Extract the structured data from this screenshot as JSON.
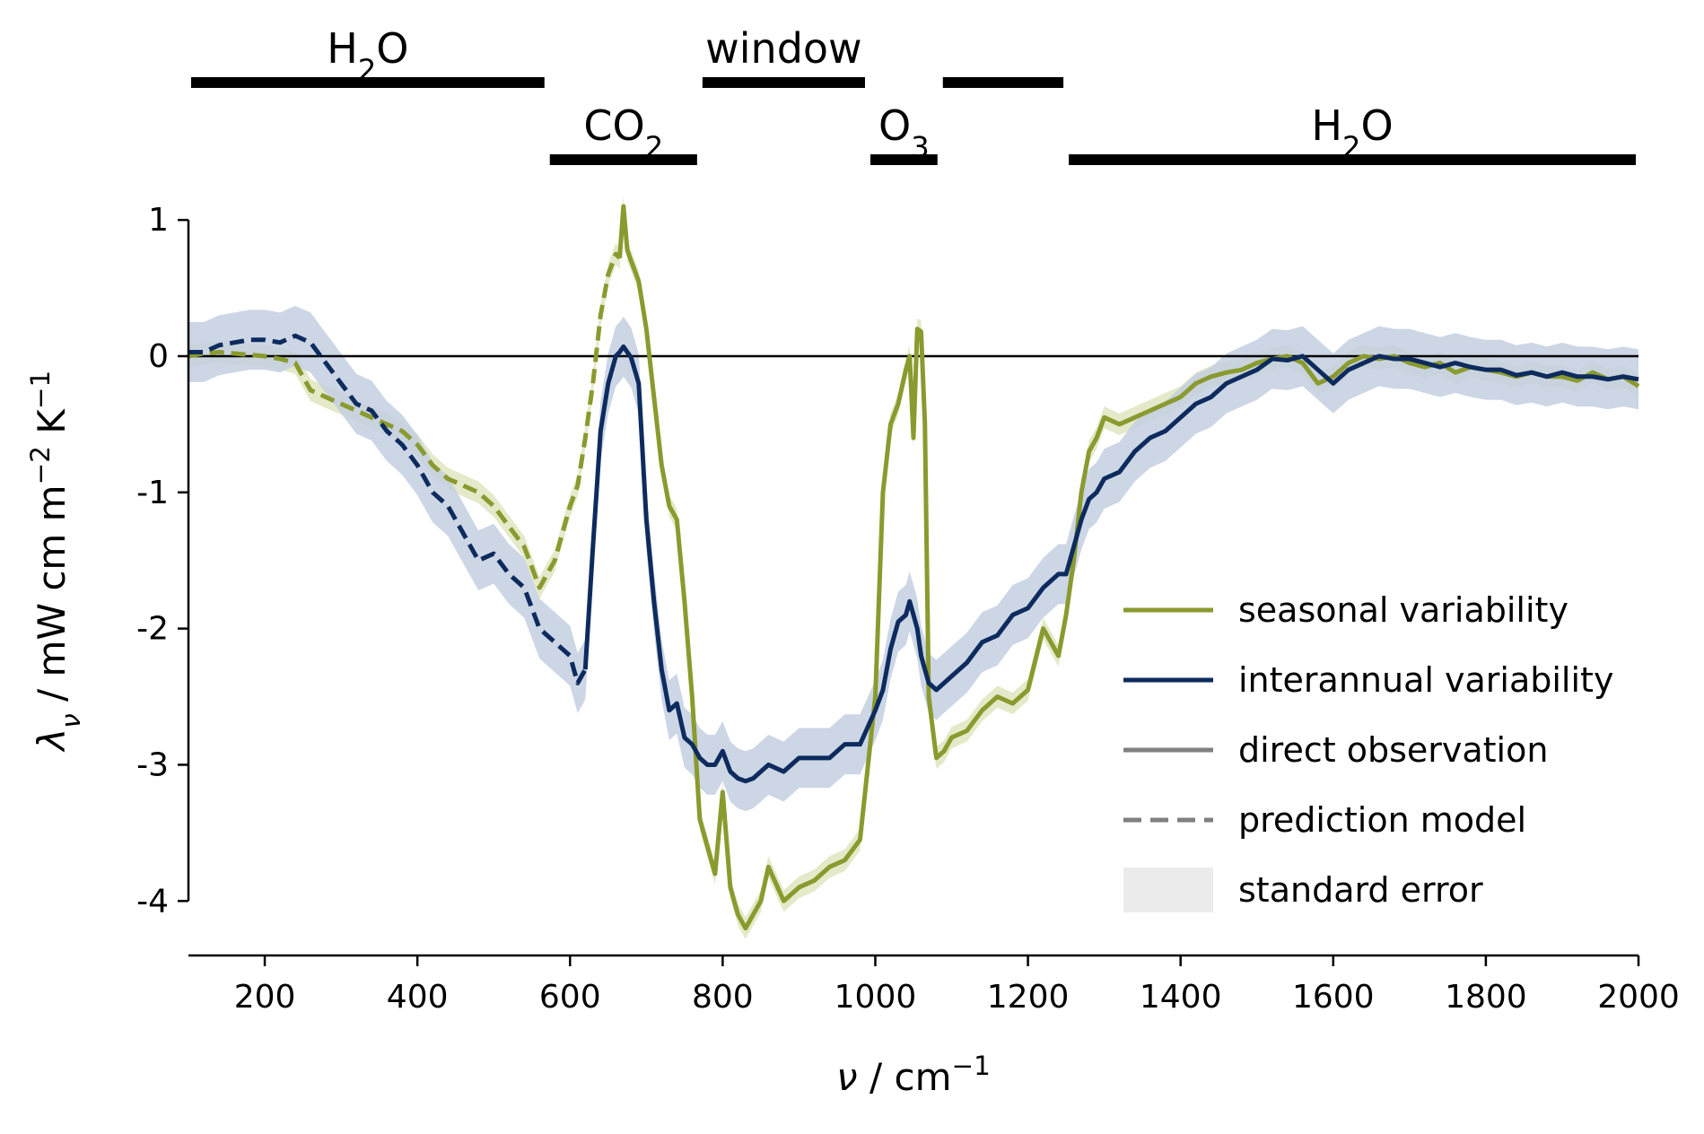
{
  "colors": {
    "seasonal": "#8a9a2e",
    "interannual": "#0d2b5e",
    "seasonal_band": "#dfe6bf",
    "interannual_band": "#c3cfe0",
    "gray_legend": "#808080",
    "std_error_legend": "#ebebeb"
  },
  "chart_data": {
    "type": "line",
    "xlabel": "ν / cm⁻¹",
    "ylabel": "λν / mW cm m⁻² K⁻¹",
    "xlim": [
      100,
      2000
    ],
    "ylim": [
      -4.4,
      1.1
    ],
    "x_ticks": [
      200,
      400,
      600,
      800,
      1000,
      1200,
      1400,
      1600,
      1800,
      2000
    ],
    "x_tick_labels": [
      "200",
      "400",
      "600",
      "800",
      "1000",
      "1200",
      "1400",
      "1600",
      "1800",
      "2000"
    ],
    "y_ticks": [
      1,
      0,
      -1,
      -2,
      -3,
      -4
    ],
    "y_tick_labels": [
      "1",
      "0",
      "-1",
      "-2",
      "-3",
      "-4"
    ],
    "zero_line": 0,
    "grid": false,
    "legend_position": "lower-right",
    "legend": [
      {
        "label": "seasonal variability",
        "style": "line",
        "color_key": "seasonal"
      },
      {
        "label": "interannual variability",
        "style": "line",
        "color_key": "interannual"
      },
      {
        "label": "direct observation",
        "style": "solid-gray"
      },
      {
        "label": "prediction model",
        "style": "dashed-gray"
      },
      {
        "label": "standard error",
        "style": "patch"
      }
    ],
    "bands": [
      {
        "label": "H₂O",
        "x0": 100,
        "x1": 570,
        "row": 1
      },
      {
        "label": "window",
        "x0": 770,
        "x1": 990,
        "row": 1
      },
      {
        "label": "",
        "x0": 1085,
        "x1": 1250,
        "row": 1
      },
      {
        "label": "CO₂",
        "x0": 570,
        "x1": 770,
        "row": 2
      },
      {
        "label": "O₃",
        "x0": 990,
        "x1": 1085,
        "row": 2
      },
      {
        "label": "H₂O",
        "x0": 1250,
        "x1": 2000,
        "row": 2
      }
    ],
    "window_label": "window",
    "series": [
      {
        "name": "seasonal variability",
        "color_key": "seasonal",
        "band_key": "seasonal_band",
        "stderr": 0.08,
        "x": [
          100,
          120,
          140,
          160,
          180,
          200,
          220,
          240,
          260,
          280,
          300,
          320,
          340,
          360,
          380,
          400,
          420,
          440,
          460,
          480,
          500,
          520,
          540,
          560,
          580,
          600,
          610,
          620,
          630,
          640,
          650,
          660,
          665,
          670,
          675,
          680,
          690,
          700,
          710,
          720,
          730,
          740,
          750,
          760,
          770,
          780,
          790,
          800,
          810,
          820,
          830,
          840,
          850,
          860,
          880,
          900,
          920,
          940,
          960,
          980,
          1000,
          1010,
          1020,
          1030,
          1040,
          1045,
          1050,
          1055,
          1060,
          1065,
          1070,
          1080,
          1090,
          1100,
          1120,
          1140,
          1160,
          1180,
          1200,
          1220,
          1240,
          1250,
          1260,
          1270,
          1280,
          1290,
          1300,
          1320,
          1340,
          1360,
          1380,
          1400,
          1420,
          1440,
          1460,
          1480,
          1500,
          1520,
          1540,
          1560,
          1580,
          1600,
          1620,
          1640,
          1660,
          1680,
          1700,
          1720,
          1740,
          1760,
          1780,
          1800,
          1820,
          1840,
          1860,
          1880,
          1900,
          1920,
          1940,
          1960,
          1980,
          2000
        ],
        "y": [
          0.0,
          0.02,
          0.03,
          0.02,
          0.01,
          0.0,
          -0.02,
          -0.05,
          -0.25,
          -0.3,
          -0.35,
          -0.4,
          -0.45,
          -0.5,
          -0.55,
          -0.65,
          -0.8,
          -0.9,
          -0.95,
          -1.0,
          -1.1,
          -1.25,
          -1.4,
          -1.7,
          -1.5,
          -1.1,
          -0.95,
          -0.6,
          -0.2,
          0.3,
          0.6,
          0.75,
          0.72,
          1.1,
          0.78,
          0.7,
          0.55,
          0.2,
          -0.3,
          -0.8,
          -1.1,
          -1.2,
          -1.8,
          -2.5,
          -3.4,
          -3.6,
          -3.8,
          -3.2,
          -3.9,
          -4.1,
          -4.2,
          -4.1,
          -4.0,
          -3.75,
          -4.0,
          -3.9,
          -3.85,
          -3.75,
          -3.7,
          -3.55,
          -2.5,
          -1.0,
          -0.5,
          -0.35,
          -0.1,
          0.0,
          -0.6,
          0.2,
          0.18,
          -0.5,
          -2.5,
          -2.95,
          -2.9,
          -2.8,
          -2.75,
          -2.6,
          -2.5,
          -2.55,
          -2.45,
          -2.0,
          -2.2,
          -1.9,
          -1.5,
          -1.0,
          -0.7,
          -0.6,
          -0.45,
          -0.5,
          -0.45,
          -0.4,
          -0.35,
          -0.3,
          -0.2,
          -0.15,
          -0.12,
          -0.1,
          -0.05,
          -0.02,
          0.0,
          -0.05,
          -0.2,
          -0.15,
          -0.05,
          0.0,
          -0.02,
          0.0,
          -0.05,
          -0.08,
          -0.05,
          -0.12,
          -0.08,
          -0.1,
          -0.12,
          -0.15,
          -0.12,
          -0.15,
          -0.15,
          -0.18,
          -0.12,
          -0.17,
          -0.15,
          -0.22
        ],
        "prediction_x_range": [
          100,
          665
        ]
      },
      {
        "name": "interannual variability",
        "color_key": "interannual",
        "band_key": "interannual_band",
        "stderr": 0.22,
        "x": [
          100,
          120,
          140,
          160,
          180,
          200,
          220,
          240,
          260,
          280,
          300,
          320,
          340,
          360,
          380,
          400,
          420,
          440,
          460,
          480,
          500,
          520,
          540,
          560,
          580,
          600,
          610,
          620,
          630,
          640,
          650,
          660,
          665,
          670,
          675,
          680,
          690,
          700,
          710,
          720,
          730,
          740,
          750,
          760,
          770,
          780,
          790,
          800,
          810,
          820,
          830,
          840,
          850,
          860,
          880,
          900,
          920,
          940,
          960,
          980,
          1000,
          1010,
          1020,
          1030,
          1040,
          1045,
          1050,
          1055,
          1060,
          1065,
          1070,
          1080,
          1090,
          1100,
          1120,
          1140,
          1160,
          1180,
          1200,
          1220,
          1240,
          1250,
          1260,
          1270,
          1280,
          1290,
          1300,
          1320,
          1340,
          1360,
          1380,
          1400,
          1420,
          1440,
          1460,
          1480,
          1500,
          1520,
          1540,
          1560,
          1580,
          1600,
          1620,
          1640,
          1660,
          1680,
          1700,
          1720,
          1740,
          1760,
          1780,
          1800,
          1820,
          1840,
          1860,
          1880,
          1900,
          1920,
          1940,
          1960,
          1980,
          2000
        ],
        "y": [
          0.03,
          0.03,
          0.08,
          0.1,
          0.12,
          0.12,
          0.1,
          0.15,
          0.1,
          -0.05,
          -0.2,
          -0.35,
          -0.4,
          -0.55,
          -0.65,
          -0.8,
          -1.0,
          -1.1,
          -1.3,
          -1.5,
          -1.45,
          -1.6,
          -1.7,
          -2.0,
          -2.1,
          -2.2,
          -2.4,
          -2.3,
          -1.4,
          -0.55,
          -0.2,
          0.0,
          0.03,
          0.07,
          0.03,
          -0.01,
          -0.2,
          -1.2,
          -1.8,
          -2.3,
          -2.6,
          -2.55,
          -2.8,
          -2.85,
          -2.95,
          -3.0,
          -3.0,
          -2.9,
          -3.05,
          -3.1,
          -3.12,
          -3.1,
          -3.05,
          -3.0,
          -3.05,
          -2.95,
          -2.95,
          -2.95,
          -2.85,
          -2.85,
          -2.6,
          -2.45,
          -2.15,
          -1.95,
          -1.9,
          -1.8,
          -1.9,
          -2.0,
          -2.2,
          -2.3,
          -2.4,
          -2.45,
          -2.4,
          -2.35,
          -2.25,
          -2.1,
          -2.05,
          -1.9,
          -1.85,
          -1.7,
          -1.6,
          -1.6,
          -1.4,
          -1.2,
          -1.05,
          -1.0,
          -0.9,
          -0.85,
          -0.7,
          -0.6,
          -0.55,
          -0.45,
          -0.35,
          -0.3,
          -0.2,
          -0.15,
          -0.1,
          -0.02,
          -0.03,
          0.0,
          -0.1,
          -0.2,
          -0.1,
          -0.05,
          0.0,
          -0.02,
          -0.02,
          -0.05,
          -0.08,
          -0.05,
          -0.08,
          -0.1,
          -0.1,
          -0.14,
          -0.12,
          -0.15,
          -0.12,
          -0.15,
          -0.15,
          -0.17,
          -0.15,
          -0.17
        ],
        "prediction_x_range": [
          100,
          620
        ]
      }
    ]
  }
}
